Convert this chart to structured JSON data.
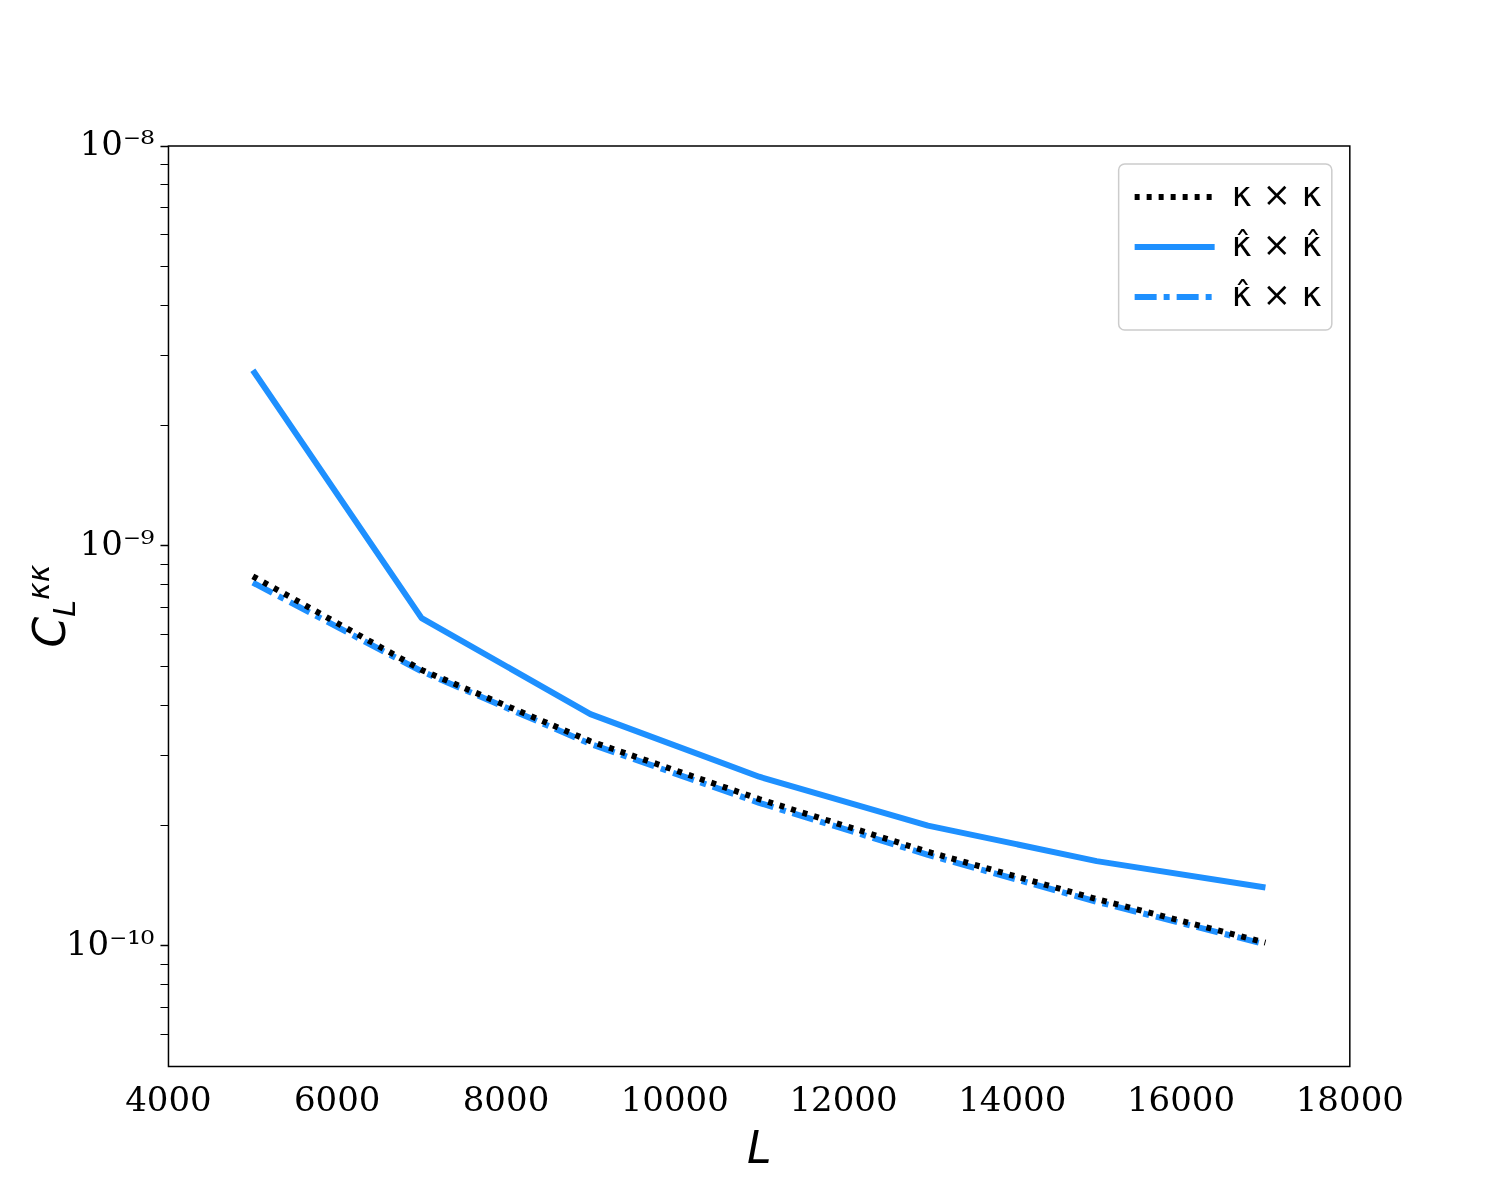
{
  "chart_data": {
    "type": "line",
    "xlabel": "L",
    "ylabel": "C$_{L}$$^{κκ}$",
    "x": [
      5000,
      7000,
      9000,
      11000,
      13000,
      15000,
      17000
    ],
    "series": [
      {
        "name": "κ × κ",
        "color": "#000000",
        "line_style": "dotted",
        "values": [
          8.4e-10,
          4.9e-10,
          3.25e-10,
          2.33e-10,
          1.72e-10,
          1.31e-10,
          1.02e-10
        ]
      },
      {
        "name": "κ̂ × κ̂",
        "color": "#1e90ff",
        "line_style": "solid",
        "values": [
          2.75e-09,
          6.6e-10,
          3.8e-10,
          2.65e-10,
          2e-10,
          1.63e-10,
          1.4e-10
        ]
      },
      {
        "name": "κ̂ × κ",
        "color": "#1e90ff",
        "line_style": "dashdot",
        "values": [
          8.1e-10,
          4.86e-10,
          3.2e-10,
          2.28e-10,
          1.69e-10,
          1.29e-10,
          1.01e-10
        ]
      }
    ],
    "xlim": [
      4000,
      18000
    ],
    "xticks": [
      4000,
      6000,
      8000,
      10000,
      12000,
      14000,
      16000,
      18000
    ],
    "ylim": [
      5e-11,
      1e-08
    ],
    "yticks": [
      {
        "value": 6e-11,
        "label": null
      },
      {
        "value": 7e-11,
        "label": null
      },
      {
        "value": 8e-11,
        "label": null
      },
      {
        "value": 9e-11,
        "label": null
      },
      {
        "value": 1e-10,
        "label": "10⁻¹⁰"
      },
      {
        "value": 2e-10,
        "label": null
      },
      {
        "value": 3e-10,
        "label": null
      },
      {
        "value": 4e-10,
        "label": null
      },
      {
        "value": 5e-10,
        "label": null
      },
      {
        "value": 6e-10,
        "label": null
      },
      {
        "value": 7e-10,
        "label": null
      },
      {
        "value": 8e-10,
        "label": null
      },
      {
        "value": 9e-10,
        "label": null
      },
      {
        "value": 1e-09,
        "label": "10⁻⁹"
      },
      {
        "value": 2e-09,
        "label": null
      },
      {
        "value": 3e-09,
        "label": null
      },
      {
        "value": 4e-09,
        "label": null
      },
      {
        "value": 5e-09,
        "label": null
      },
      {
        "value": 6e-09,
        "label": null
      },
      {
        "value": 7e-09,
        "label": null
      },
      {
        "value": 8e-09,
        "label": null
      },
      {
        "value": 9e-09,
        "label": null
      },
      {
        "value": 1e-08,
        "label": "10⁻⁸"
      }
    ],
    "log": "y",
    "legend": "top right",
    "marker": "none"
  }
}
